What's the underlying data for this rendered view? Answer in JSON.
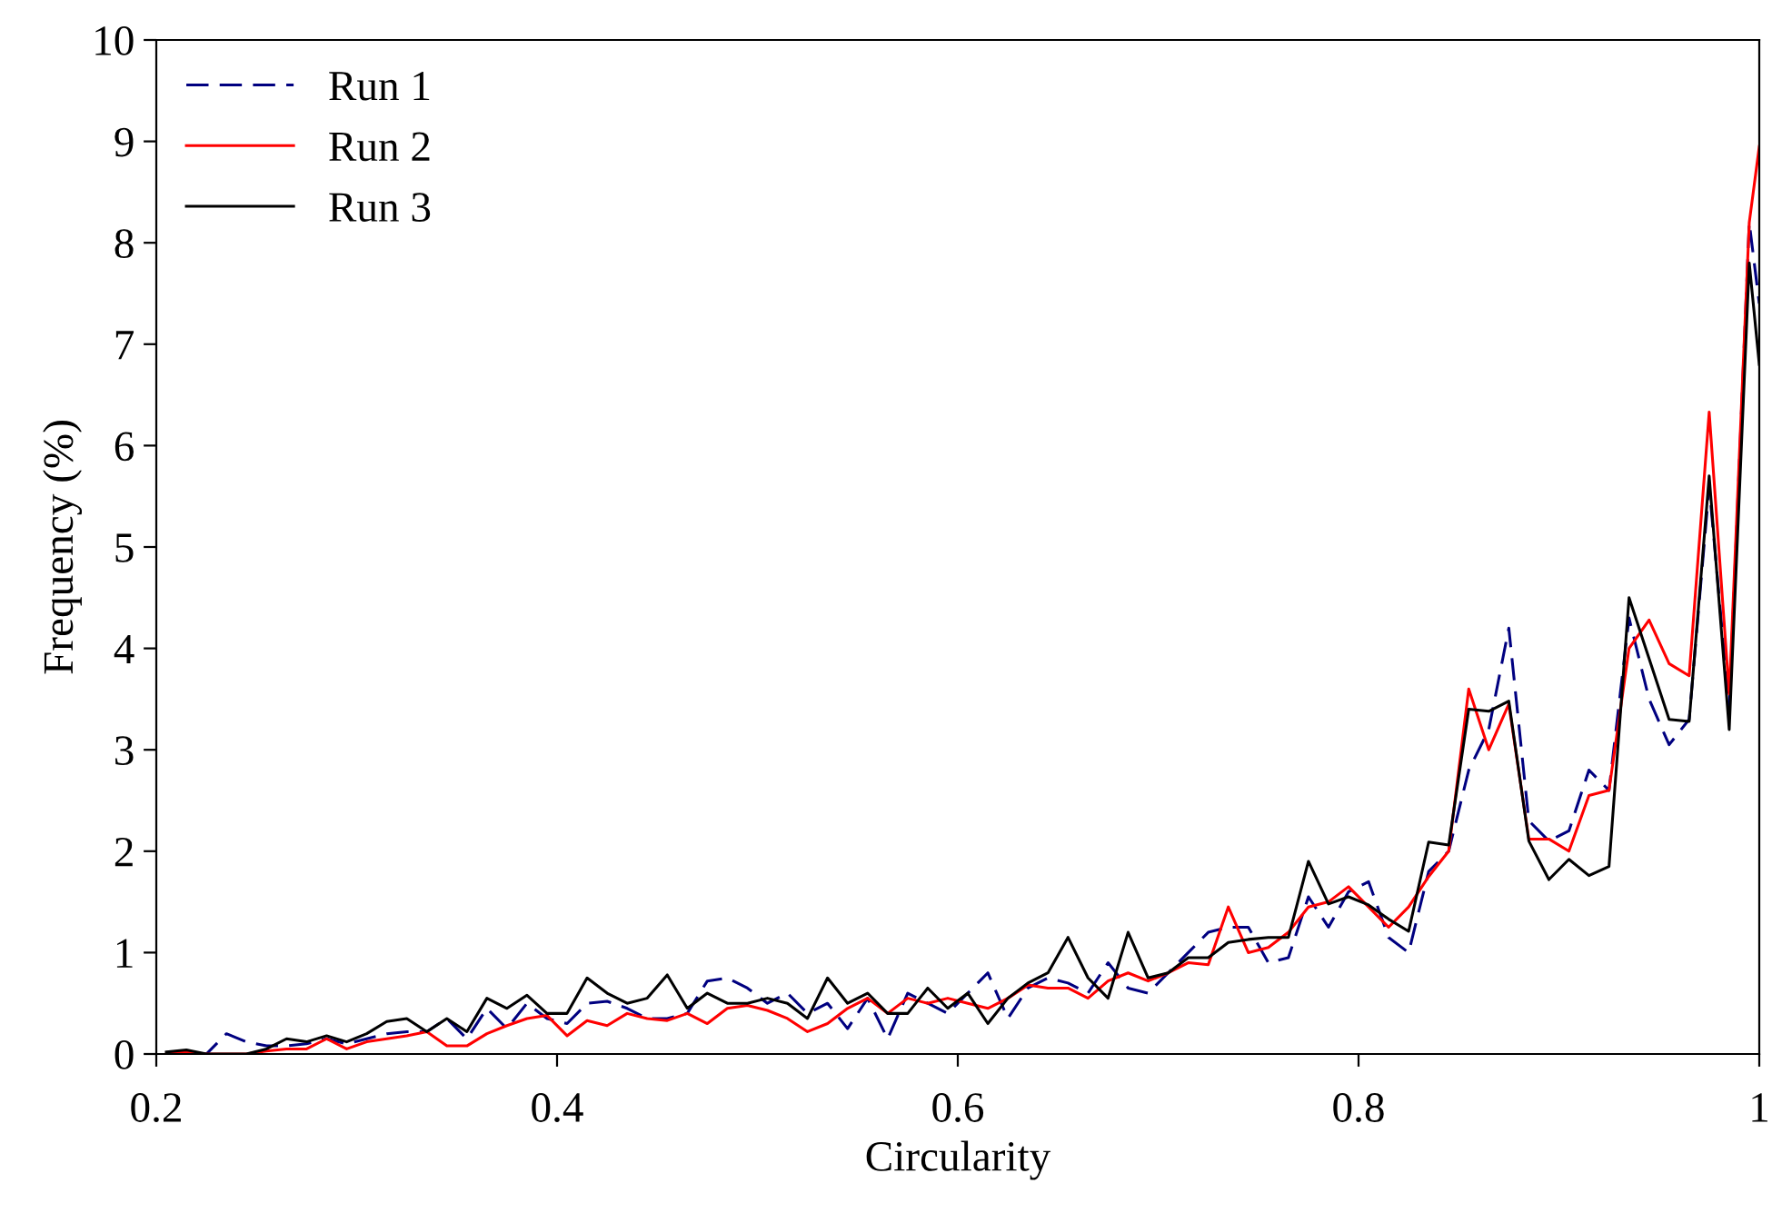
{
  "chart_data": {
    "type": "line",
    "xlabel": "Circularity",
    "ylabel": "Frequency (%)",
    "x": [
      0.205,
      0.215,
      0.225,
      0.235,
      0.245,
      0.255,
      0.265,
      0.275,
      0.285,
      0.295,
      0.305,
      0.315,
      0.325,
      0.335,
      0.345,
      0.355,
      0.365,
      0.375,
      0.385,
      0.395,
      0.405,
      0.415,
      0.425,
      0.435,
      0.445,
      0.455,
      0.465,
      0.475,
      0.485,
      0.495,
      0.505,
      0.515,
      0.525,
      0.535,
      0.545,
      0.555,
      0.565,
      0.575,
      0.585,
      0.595,
      0.605,
      0.615,
      0.625,
      0.635,
      0.645,
      0.655,
      0.665,
      0.675,
      0.685,
      0.695,
      0.705,
      0.715,
      0.725,
      0.735,
      0.745,
      0.755,
      0.765,
      0.775,
      0.785,
      0.795,
      0.805,
      0.815,
      0.825,
      0.835,
      0.845,
      0.855,
      0.865,
      0.875,
      0.885,
      0.895,
      0.905,
      0.915,
      0.925,
      0.935,
      0.945,
      0.955,
      0.965,
      0.975,
      0.985,
      0.995,
      1.0
    ],
    "series": [
      {
        "name": "Run 1",
        "color": "#000080",
        "line_style": "dashed",
        "values": [
          0.0,
          0.0,
          0.0,
          0.2,
          0.12,
          0.08,
          0.08,
          0.1,
          0.15,
          0.1,
          0.15,
          0.2,
          0.22,
          0.22,
          0.35,
          0.15,
          0.45,
          0.25,
          0.5,
          0.35,
          0.3,
          0.5,
          0.52,
          0.45,
          0.35,
          0.35,
          0.4,
          0.72,
          0.75,
          0.65,
          0.5,
          0.6,
          0.4,
          0.5,
          0.25,
          0.55,
          0.15,
          0.6,
          0.5,
          0.4,
          0.6,
          0.8,
          0.35,
          0.65,
          0.75,
          0.7,
          0.6,
          0.9,
          0.65,
          0.6,
          0.8,
          1.0,
          1.2,
          1.25,
          1.25,
          0.9,
          0.95,
          1.55,
          1.25,
          1.6,
          1.7,
          1.15,
          1.0,
          1.8,
          2.0,
          2.8,
          3.2,
          4.2,
          2.3,
          2.1,
          2.2,
          2.8,
          2.6,
          4.3,
          3.5,
          3.05,
          3.3,
          5.6,
          3.4,
          8.2,
          7.4
        ]
      },
      {
        "name": "Run 2",
        "color": "#ff0000",
        "line_style": "solid",
        "values": [
          0.0,
          0.02,
          0.0,
          0.0,
          0.0,
          0.03,
          0.05,
          0.05,
          0.15,
          0.05,
          0.12,
          0.15,
          0.18,
          0.22,
          0.08,
          0.08,
          0.2,
          0.28,
          0.35,
          0.38,
          0.18,
          0.33,
          0.28,
          0.4,
          0.35,
          0.33,
          0.4,
          0.3,
          0.45,
          0.48,
          0.43,
          0.35,
          0.22,
          0.3,
          0.45,
          0.55,
          0.4,
          0.55,
          0.5,
          0.55,
          0.5,
          0.45,
          0.55,
          0.68,
          0.65,
          0.65,
          0.55,
          0.72,
          0.8,
          0.72,
          0.8,
          0.9,
          0.88,
          1.45,
          1.0,
          1.05,
          1.2,
          1.45,
          1.5,
          1.65,
          1.45,
          1.25,
          1.45,
          1.75,
          2.0,
          3.6,
          3.0,
          3.45,
          2.12,
          2.12,
          2.0,
          2.55,
          2.6,
          4.0,
          4.28,
          3.85,
          3.73,
          6.33,
          3.55,
          8.2,
          8.95
        ]
      },
      {
        "name": "Run 3",
        "color": "#000000",
        "line_style": "solid",
        "values": [
          0.02,
          0.04,
          0.0,
          0.0,
          0.0,
          0.05,
          0.15,
          0.12,
          0.18,
          0.12,
          0.2,
          0.32,
          0.35,
          0.22,
          0.35,
          0.22,
          0.55,
          0.45,
          0.58,
          0.4,
          0.4,
          0.75,
          0.6,
          0.5,
          0.55,
          0.78,
          0.45,
          0.6,
          0.5,
          0.5,
          0.55,
          0.5,
          0.35,
          0.75,
          0.5,
          0.6,
          0.4,
          0.4,
          0.65,
          0.45,
          0.6,
          0.3,
          0.55,
          0.7,
          0.8,
          1.15,
          0.75,
          0.55,
          1.2,
          0.75,
          0.8,
          0.95,
          0.95,
          1.1,
          1.13,
          1.15,
          1.15,
          1.9,
          1.48,
          1.55,
          1.47,
          1.33,
          1.21,
          2.09,
          2.06,
          3.4,
          3.38,
          3.48,
          2.1,
          1.72,
          1.92,
          1.76,
          1.85,
          4.5,
          3.9,
          3.3,
          3.28,
          5.7,
          3.2,
          7.8,
          6.8
        ]
      }
    ],
    "xlim": [
      0.2,
      1.0
    ],
    "xticks": [
      0.2,
      0.4,
      0.6,
      0.8,
      {
        "value": 1.0,
        "label": "1"
      }
    ],
    "ylim": [
      0,
      10
    ],
    "yticks": [
      0,
      1,
      2,
      3,
      4,
      5,
      6,
      7,
      8,
      9,
      10
    ],
    "legend": "top left",
    "grid": false
  }
}
